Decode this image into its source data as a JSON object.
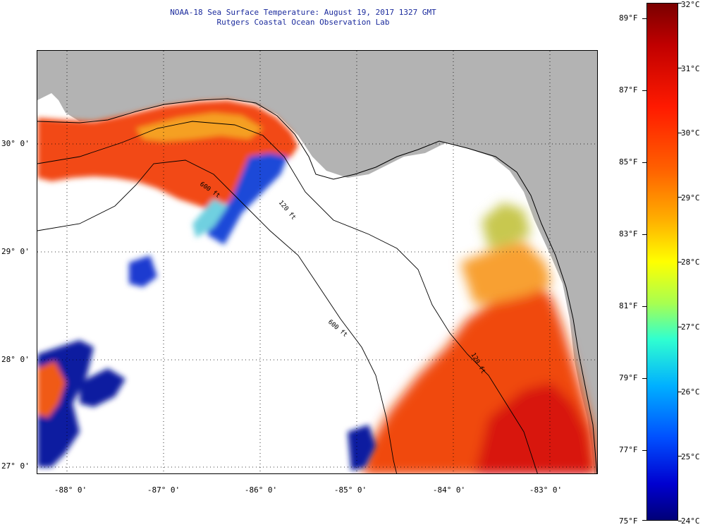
{
  "title": {
    "line1": "NOAA-18 Sea Surface Temperature:  August 19, 2017 1327 GMT",
    "line2": "Rutgers Coastal Ocean Observation Lab"
  },
  "map": {
    "latitude_labels": [
      "30° 0'",
      "29° 0'",
      "28° 0'",
      "27° 0'"
    ],
    "longitude_labels": [
      "-88° 0'",
      "-87° 0'",
      "-86° 0'",
      "-85° 0'",
      "-84° 0'",
      "-83° 0'"
    ],
    "contour_labels": [
      "600 ft",
      "120 ft",
      "600 ft",
      "120 ft"
    ],
    "colors": {
      "land": "#b3b3b3",
      "cloud": "#ffffff",
      "warm": "#f04a0a",
      "cold": "#0a1a9c"
    }
  },
  "colorbar": {
    "fahrenheit_labels": [
      "89°F",
      "87°F",
      "85°F",
      "83°F",
      "81°F",
      "79°F",
      "77°F",
      "75°F"
    ],
    "celsius_labels": [
      "32°C",
      "31°C",
      "30°C",
      "29°C",
      "28°C",
      "27°C",
      "26°C",
      "25°C",
      "24°C"
    ],
    "range_c": [
      24,
      32
    ]
  }
}
